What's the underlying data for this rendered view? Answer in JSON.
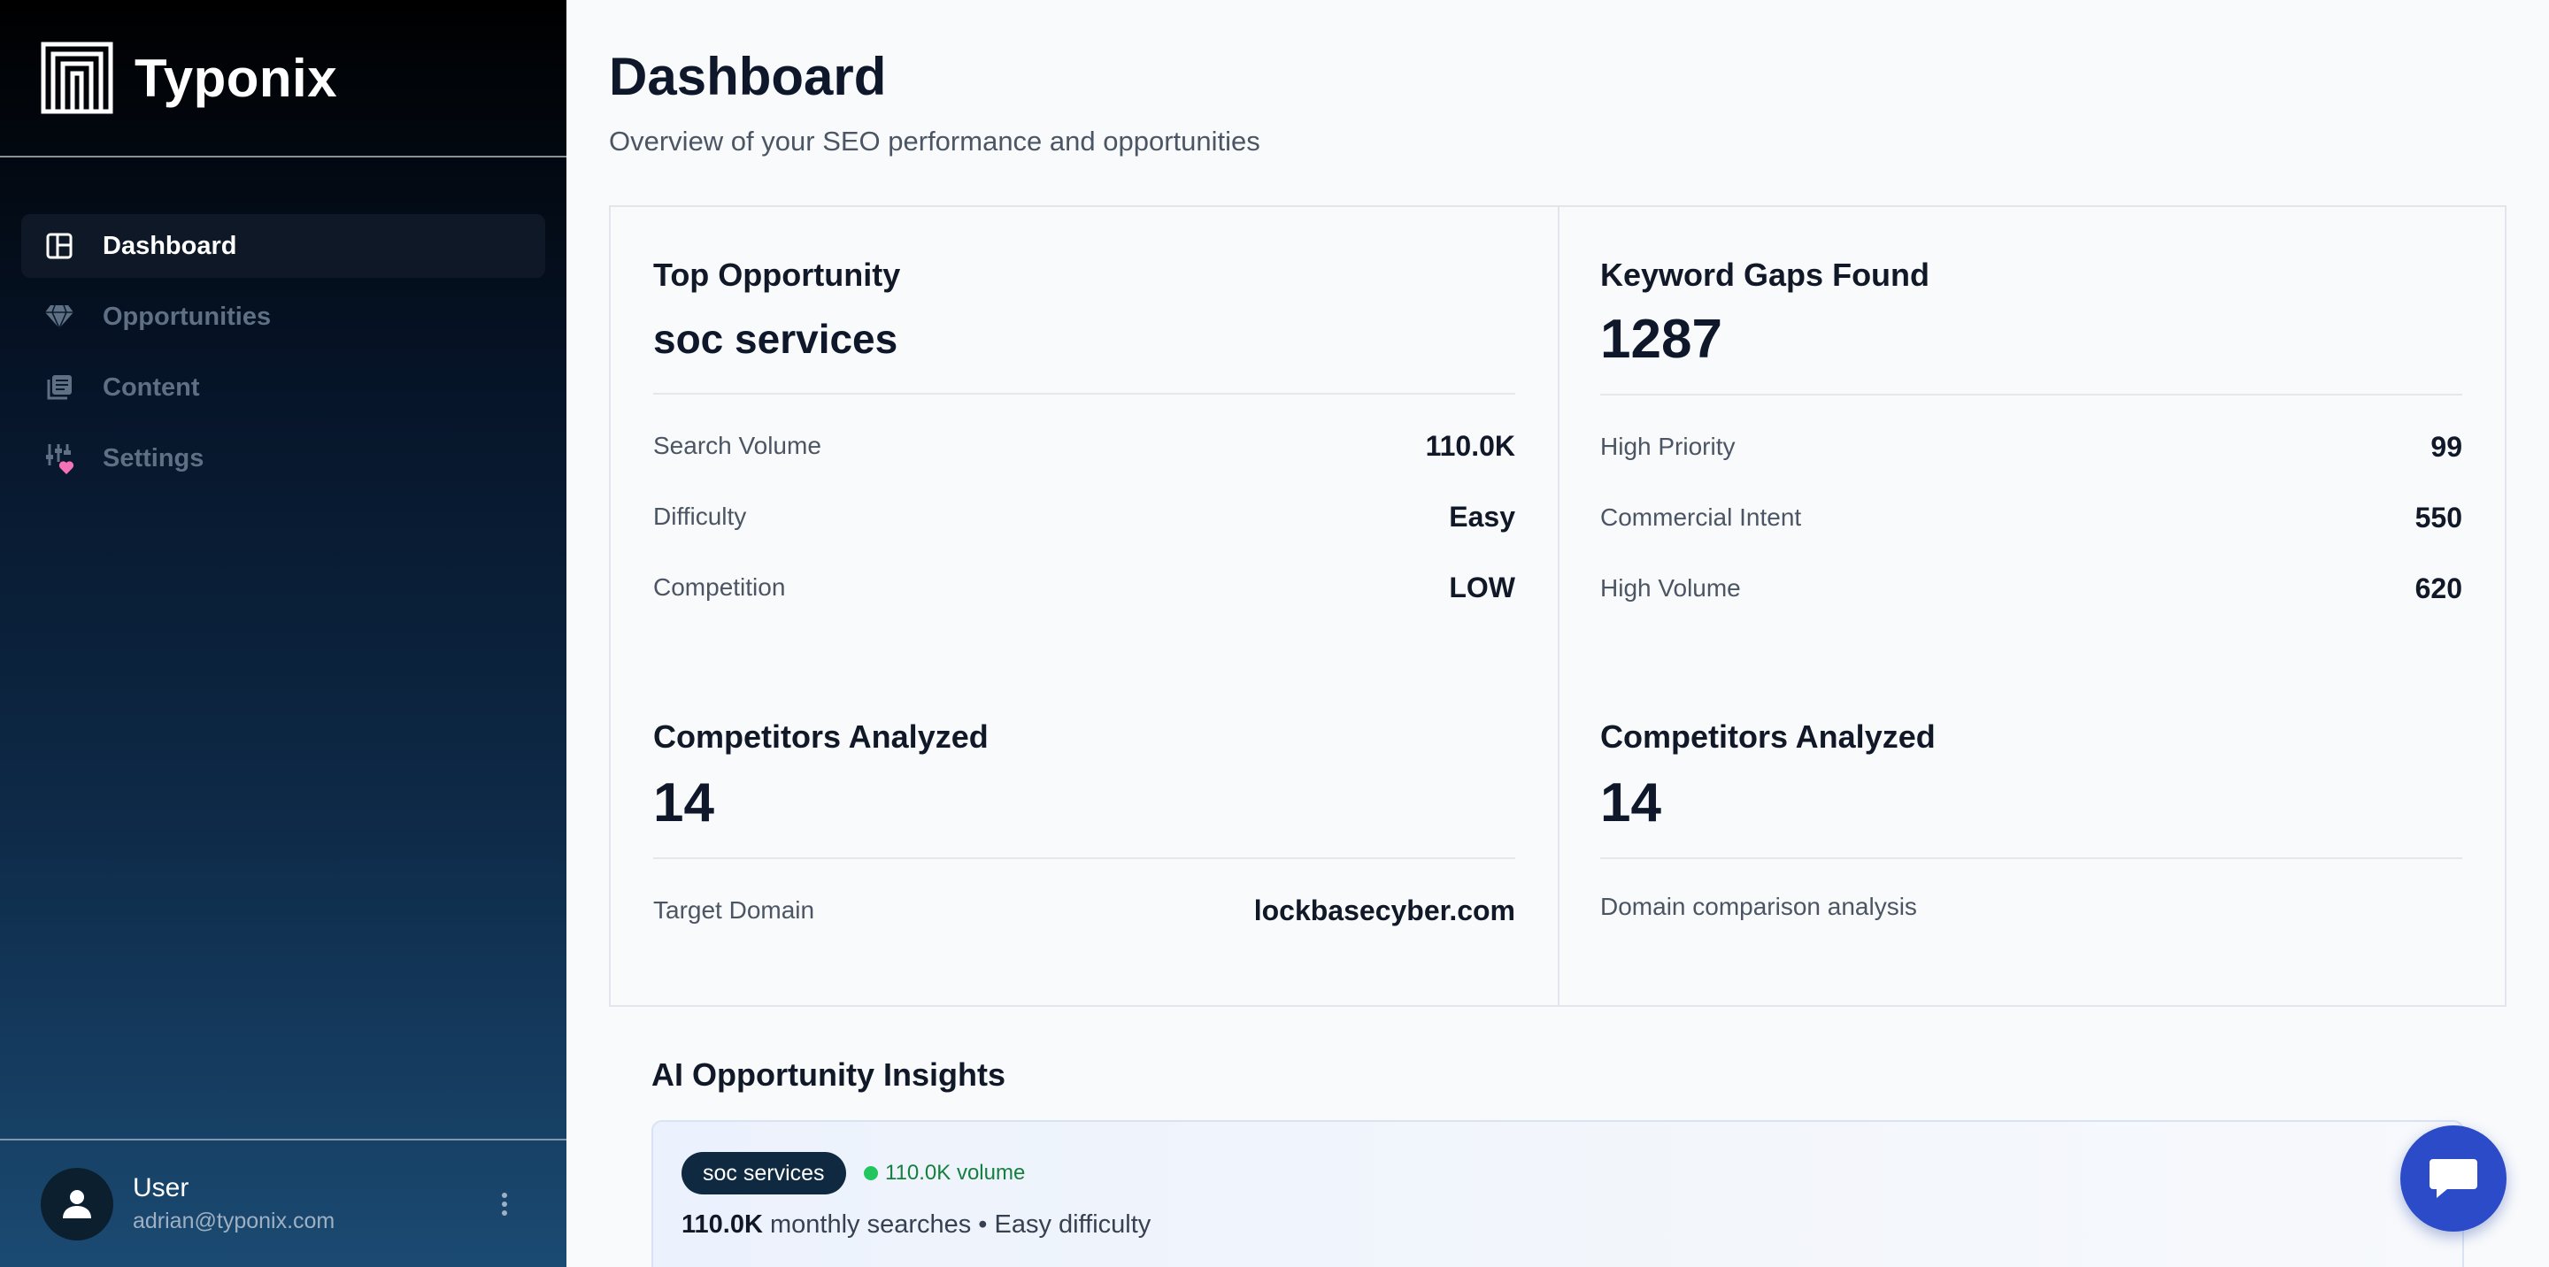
{
  "brand": {
    "name": "Typonix"
  },
  "nav": {
    "items": [
      {
        "label": "Dashboard",
        "icon": "dashboard-icon",
        "active": true
      },
      {
        "label": "Opportunities",
        "icon": "gem-icon",
        "active": false
      },
      {
        "label": "Content",
        "icon": "content-stack-icon",
        "active": false
      },
      {
        "label": "Settings",
        "icon": "settings-sliders-icon",
        "active": false
      }
    ]
  },
  "user": {
    "name": "User",
    "email": "adrian@typonix.com"
  },
  "header": {
    "title": "Dashboard",
    "subtitle": "Overview of your SEO performance and opportunities"
  },
  "cards": {
    "top_opportunity": {
      "title": "Top Opportunity",
      "keyword": "soc services",
      "rows": [
        {
          "label": "Search Volume",
          "value": "110.0K"
        },
        {
          "label": "Difficulty",
          "value": "Easy"
        },
        {
          "label": "Competition",
          "value": "LOW"
        }
      ]
    },
    "keyword_gaps": {
      "title": "Keyword Gaps Found",
      "value": "1287",
      "rows": [
        {
          "label": "High Priority",
          "value": "99"
        },
        {
          "label": "Commercial Intent",
          "value": "550"
        },
        {
          "label": "High Volume",
          "value": "620"
        }
      ]
    },
    "competitors_left": {
      "title": "Competitors Analyzed",
      "value": "14",
      "row": {
        "label": "Target Domain",
        "value": "lockbasecyber.com"
      }
    },
    "competitors_right": {
      "title": "Competitors Analyzed",
      "value": "14",
      "note": "Domain comparison analysis"
    }
  },
  "insights": {
    "title": "AI Opportunity Insights",
    "item": {
      "keyword": "soc services",
      "volume_badge": "110.0K volume",
      "volume_strong": "110.0K",
      "detail": "monthly searches • Easy difficulty"
    }
  },
  "colors": {
    "accent": "#2b4bc9",
    "chip_bg": "#0f2a40",
    "volume_green": "#15803d",
    "sidebar_top": "#000000",
    "sidebar_bottom": "#1b4a72"
  }
}
